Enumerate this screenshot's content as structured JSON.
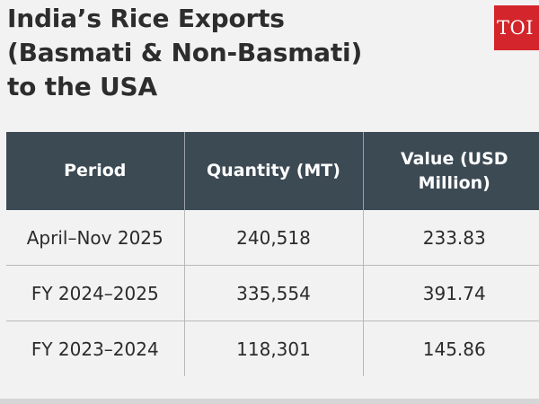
{
  "title": {
    "line1": "India’s Rice Exports",
    "line2": "(Basmati & Non-Basmati)",
    "line3": "to the USA"
  },
  "logo": {
    "text": "TOI",
    "color": "#d3252b"
  },
  "table": {
    "headers": [
      "Period",
      "Quantity (MT)",
      "Value (USD Million)"
    ],
    "rows": [
      {
        "period": "April–Nov 2025",
        "quantity": "240,518",
        "value": "233.83"
      },
      {
        "period": "FY 2024–2025",
        "quantity": "335,554",
        "value": "391.74"
      },
      {
        "period": "FY 2023–2024",
        "quantity": "118,301",
        "value": "145.86"
      }
    ],
    "header_color": "#3c4a54"
  }
}
